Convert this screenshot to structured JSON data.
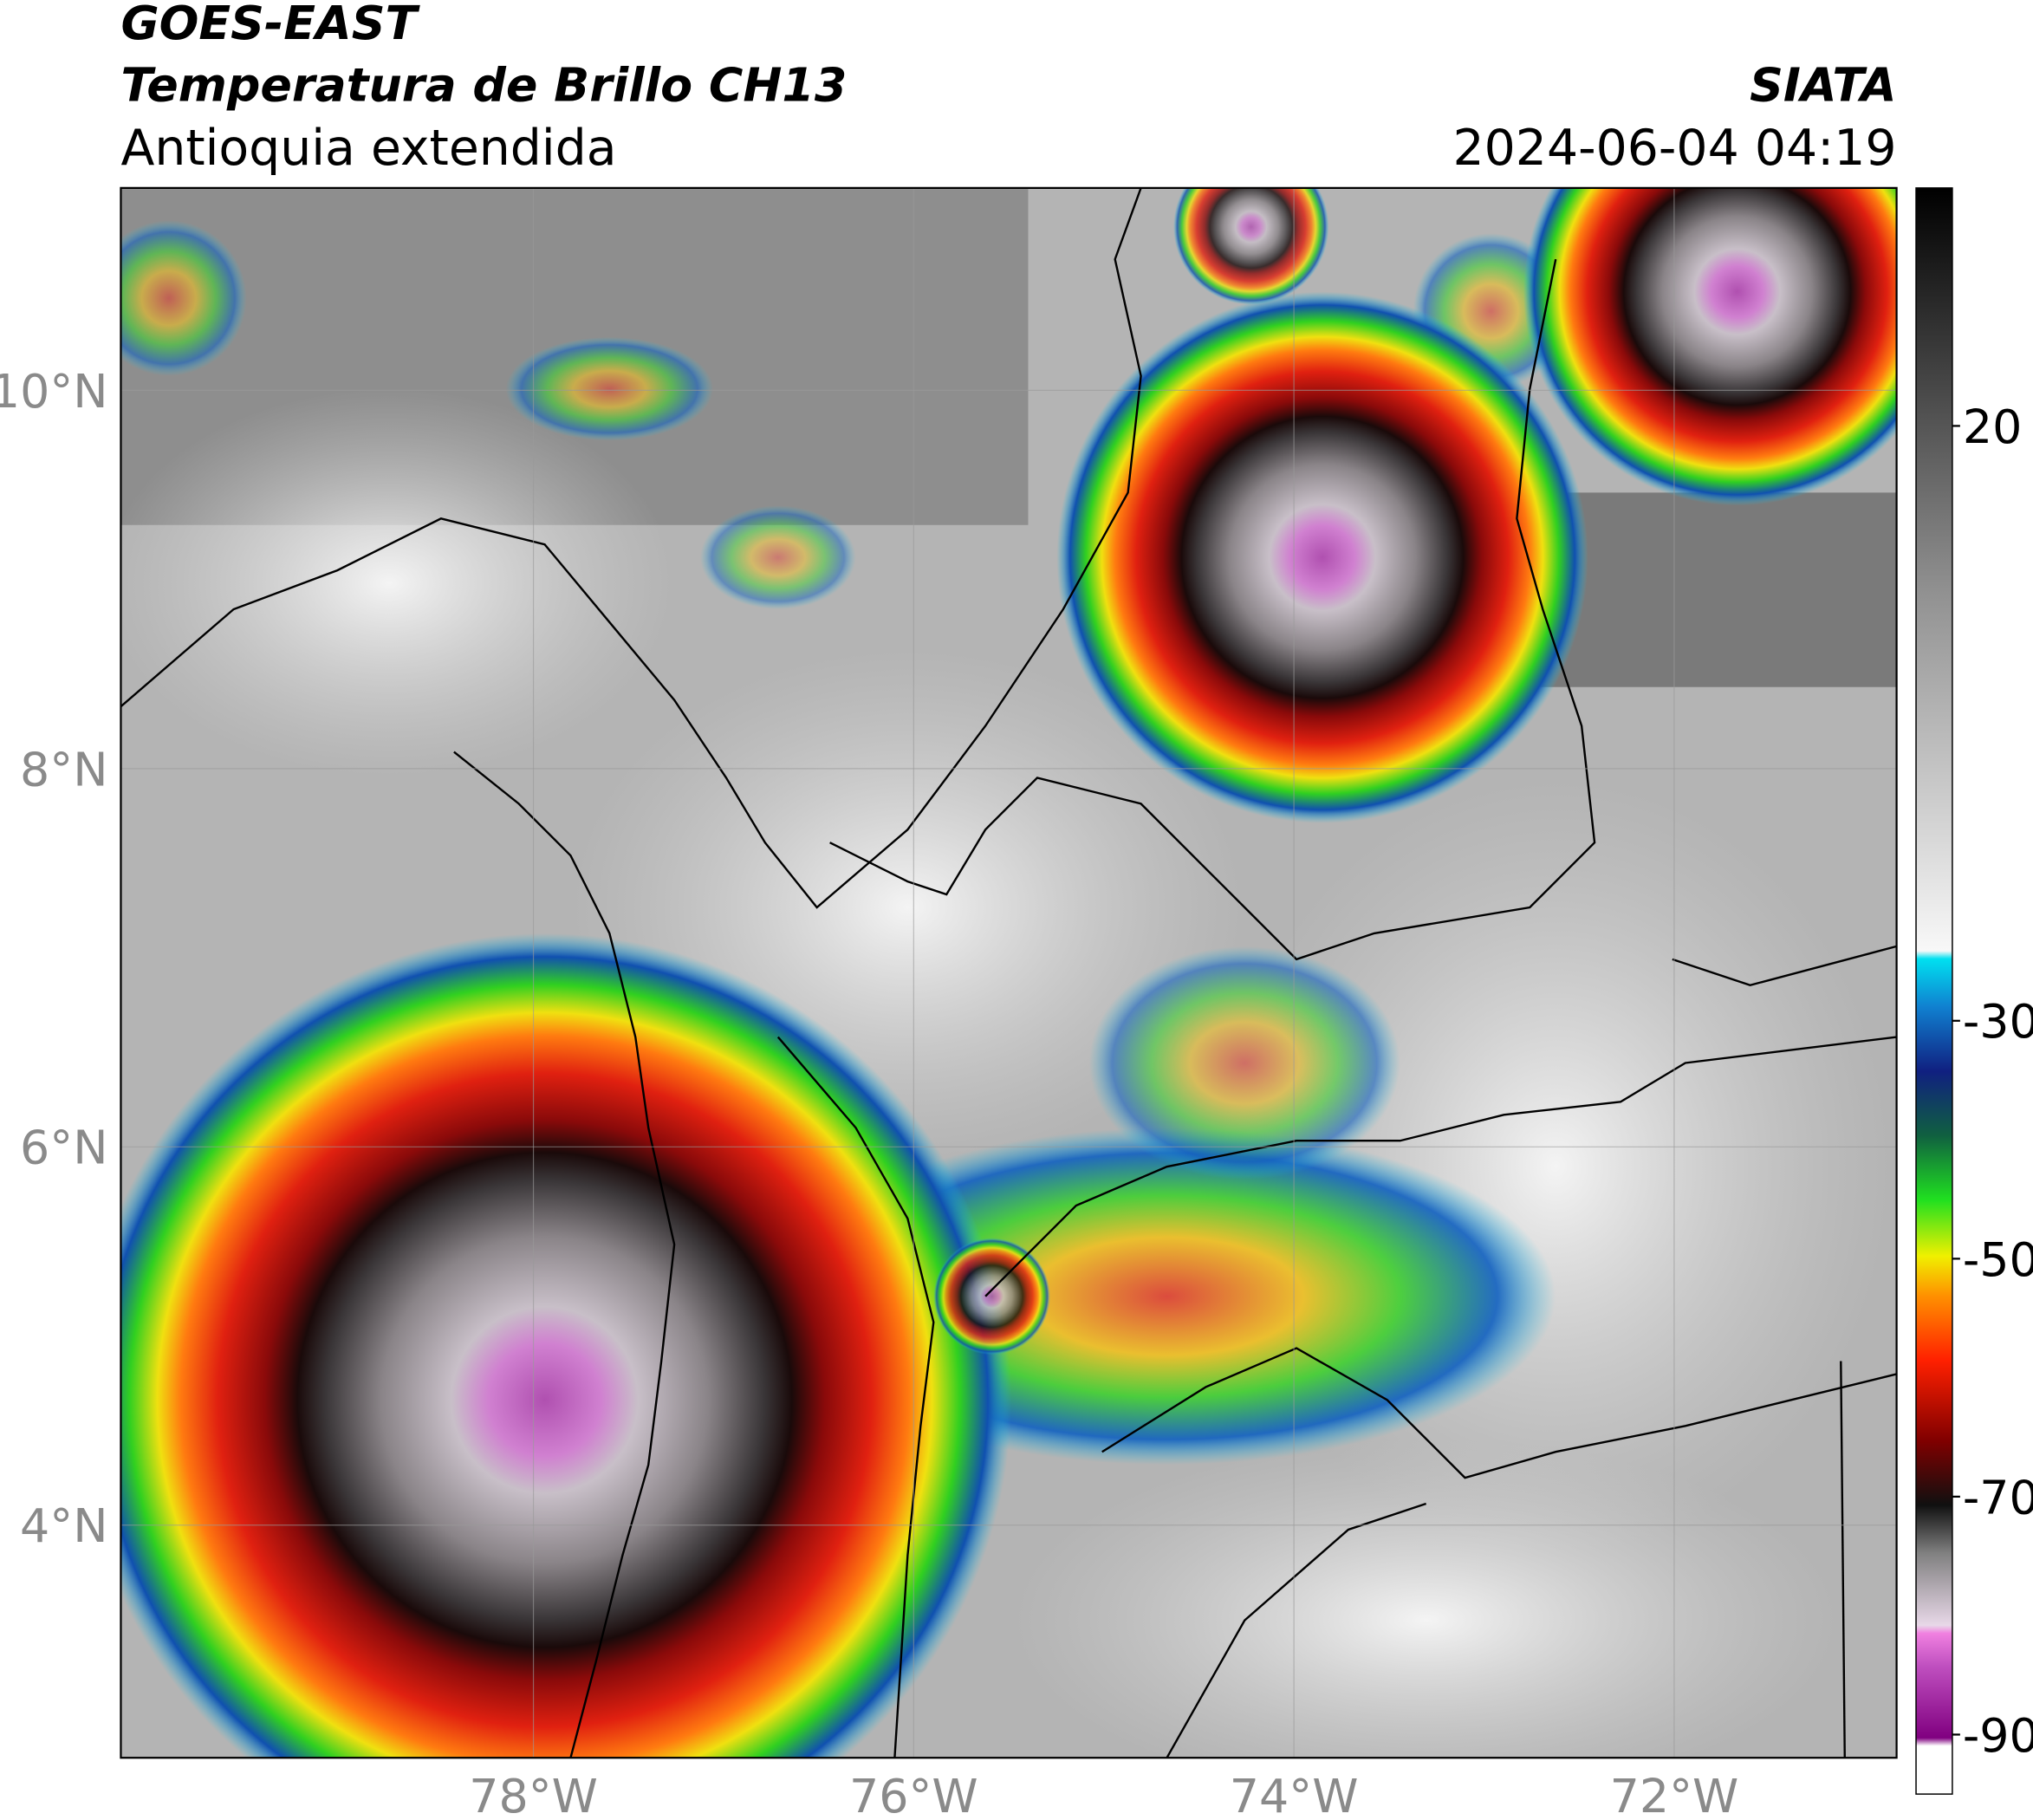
{
  "header": {
    "title": "GOES-EAST",
    "product": "Temperatura de Brillo CH13",
    "region": "Antioquia extendida",
    "source": "SIATA",
    "datetime": "2024-06-04 04:19"
  },
  "map": {
    "lon_range": [
      -80.17,
      -70.83
    ],
    "lat_range": [
      2.77,
      11.07
    ],
    "lat_ticks": [
      {
        "value": 4,
        "label": "4°N"
      },
      {
        "value": 6,
        "label": "6°N"
      },
      {
        "value": 8,
        "label": "8°N"
      },
      {
        "value": 10,
        "label": "10°N"
      }
    ],
    "lon_ticks": [
      {
        "value": -78,
        "label": "78°W"
      },
      {
        "value": -76,
        "label": "76°W"
      },
      {
        "value": -74,
        "label": "74°W"
      },
      {
        "value": -72,
        "label": "72°W"
      }
    ]
  },
  "colorbar": {
    "range": [
      -95,
      40
    ],
    "ticks": [
      -90,
      -70,
      -50,
      -30,
      20
    ]
  }
}
